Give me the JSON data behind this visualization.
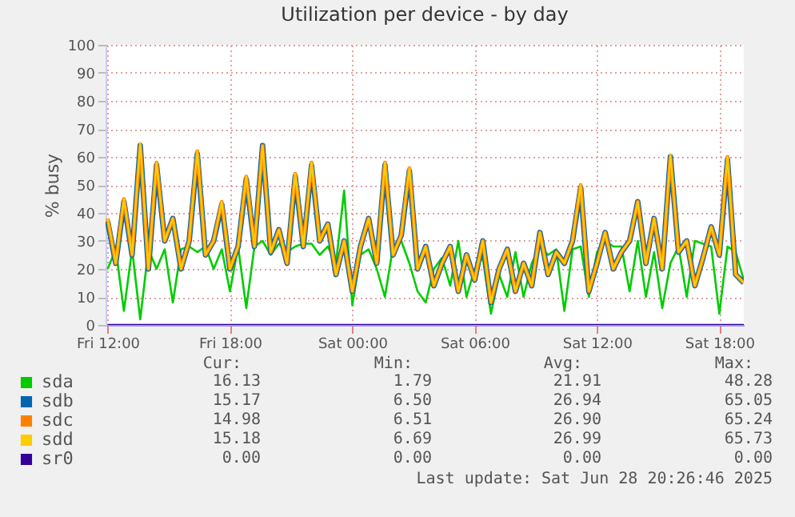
{
  "chart_data": {
    "type": "line",
    "title": "Utilization per device - by day",
    "ylabel": "% busy",
    "x": [
      "2025-06-27T12:00",
      "2025-06-27T12:24",
      "2025-06-27T12:48",
      "2025-06-27T13:12",
      "2025-06-27T13:36",
      "2025-06-27T14:00",
      "2025-06-27T14:24",
      "2025-06-27T14:48",
      "2025-06-27T15:12",
      "2025-06-27T15:36",
      "2025-06-27T16:00",
      "2025-06-27T16:24",
      "2025-06-27T16:48",
      "2025-06-27T17:12",
      "2025-06-27T17:36",
      "2025-06-27T18:00",
      "2025-06-27T18:24",
      "2025-06-27T18:48",
      "2025-06-27T19:12",
      "2025-06-27T19:36",
      "2025-06-27T20:00",
      "2025-06-27T20:24",
      "2025-06-27T20:48",
      "2025-06-27T21:12",
      "2025-06-27T21:36",
      "2025-06-27T22:00",
      "2025-06-27T22:24",
      "2025-06-27T22:48",
      "2025-06-27T23:12",
      "2025-06-27T23:36",
      "2025-06-28T00:00",
      "2025-06-28T00:24",
      "2025-06-28T00:48",
      "2025-06-28T01:12",
      "2025-06-28T01:36",
      "2025-06-28T02:00",
      "2025-06-28T02:24",
      "2025-06-28T02:48",
      "2025-06-28T03:12",
      "2025-06-28T03:36",
      "2025-06-28T04:00",
      "2025-06-28T04:24",
      "2025-06-28T04:48",
      "2025-06-28T05:12",
      "2025-06-28T05:36",
      "2025-06-28T06:00",
      "2025-06-28T06:24",
      "2025-06-28T06:48",
      "2025-06-28T07:12",
      "2025-06-28T07:36",
      "2025-06-28T08:00",
      "2025-06-28T08:24",
      "2025-06-28T08:48",
      "2025-06-28T09:12",
      "2025-06-28T09:36",
      "2025-06-28T10:00",
      "2025-06-28T10:24",
      "2025-06-28T10:48",
      "2025-06-28T11:12",
      "2025-06-28T11:36",
      "2025-06-28T12:00",
      "2025-06-28T12:24",
      "2025-06-28T12:48",
      "2025-06-28T13:12",
      "2025-06-28T13:36",
      "2025-06-28T14:00",
      "2025-06-28T14:24",
      "2025-06-28T14:48",
      "2025-06-28T15:12",
      "2025-06-28T15:36",
      "2025-06-28T16:00",
      "2025-06-28T16:24",
      "2025-06-28T16:48",
      "2025-06-28T17:12",
      "2025-06-28T17:36",
      "2025-06-28T18:00",
      "2025-06-28T18:24",
      "2025-06-28T18:48",
      "2025-06-28T19:12"
    ],
    "series": [
      {
        "name": "sda",
        "color": "#00cc00",
        "values": [
          20,
          27,
          5,
          27,
          2,
          27,
          20,
          27,
          8,
          27,
          28,
          26,
          28,
          20,
          27,
          12,
          28,
          6,
          28,
          30,
          25,
          29,
          26,
          28,
          29,
          29,
          25,
          28,
          22,
          48,
          7,
          25,
          27,
          20,
          10,
          28,
          30,
          22,
          12,
          8,
          20,
          24,
          14,
          30,
          10,
          20,
          24,
          4,
          18,
          10,
          26,
          10,
          22,
          28,
          25,
          27,
          5,
          27,
          28,
          10,
          26,
          30,
          28,
          28,
          12,
          30,
          10,
          26,
          6,
          22,
          28,
          10,
          30,
          29,
          28,
          4,
          28,
          26,
          16
        ]
      },
      {
        "name": "sdb",
        "color": "#0066b3",
        "values": [
          37,
          22,
          44,
          25,
          64,
          20,
          57,
          30,
          38,
          20,
          30,
          61,
          25,
          30,
          43,
          20,
          28,
          52,
          28,
          64,
          26,
          34,
          22,
          53,
          28,
          57,
          30,
          36,
          18,
          30,
          12,
          28,
          38,
          22,
          57,
          25,
          32,
          55,
          20,
          28,
          14,
          22,
          28,
          12,
          25,
          16,
          30,
          8,
          20,
          27,
          12,
          22,
          14,
          33,
          18,
          26,
          22,
          30,
          49,
          12,
          22,
          33,
          20,
          26,
          30,
          44,
          22,
          38,
          20,
          60,
          26,
          30,
          14,
          24,
          35,
          25,
          59,
          18,
          15
        ]
      },
      {
        "name": "sdc",
        "color": "#ff8000",
        "values": [
          38,
          22,
          45,
          25,
          64,
          20,
          58,
          30,
          38,
          20,
          30,
          62,
          25,
          30,
          44,
          20,
          28,
          53,
          28,
          64,
          26,
          34,
          22,
          54,
          28,
          58,
          30,
          36,
          18,
          30,
          12,
          28,
          38,
          22,
          58,
          25,
          32,
          56,
          20,
          28,
          14,
          22,
          28,
          12,
          25,
          16,
          30,
          8,
          20,
          27,
          12,
          22,
          14,
          33,
          18,
          26,
          22,
          30,
          50,
          12,
          22,
          33,
          20,
          26,
          30,
          44,
          22,
          38,
          20,
          60,
          26,
          30,
          14,
          24,
          35,
          25,
          60,
          18,
          15
        ]
      },
      {
        "name": "sdd",
        "color": "#ffcc00",
        "values": [
          38,
          22,
          45,
          25,
          65,
          20,
          58,
          30,
          38,
          20,
          30,
          62,
          25,
          30,
          44,
          20,
          28,
          53,
          28,
          64,
          26,
          34,
          22,
          54,
          28,
          58,
          30,
          36,
          18,
          30,
          12,
          28,
          38,
          22,
          58,
          25,
          32,
          56,
          20,
          28,
          14,
          22,
          28,
          12,
          25,
          16,
          30,
          8,
          20,
          27,
          12,
          22,
          14,
          33,
          18,
          26,
          22,
          30,
          50,
          12,
          22,
          33,
          20,
          26,
          30,
          44,
          22,
          38,
          20,
          61,
          26,
          30,
          14,
          24,
          35,
          25,
          60,
          18,
          15
        ]
      },
      {
        "name": "sr0",
        "color": "#330099",
        "values": [
          0,
          0,
          0,
          0,
          0,
          0,
          0,
          0,
          0,
          0,
          0,
          0,
          0,
          0,
          0,
          0,
          0,
          0,
          0,
          0,
          0,
          0,
          0,
          0,
          0,
          0,
          0,
          0,
          0,
          0,
          0,
          0,
          0,
          0,
          0,
          0,
          0,
          0,
          0,
          0,
          0,
          0,
          0,
          0,
          0,
          0,
          0,
          0,
          0,
          0,
          0,
          0,
          0,
          0,
          0,
          0,
          0,
          0,
          0,
          0,
          0,
          0,
          0,
          0,
          0,
          0,
          0,
          0,
          0,
          0,
          0,
          0,
          0,
          0,
          0,
          0,
          0,
          0,
          0
        ]
      }
    ],
    "xlim": [
      "2025-06-27T11:54",
      "2025-06-28T19:12"
    ],
    "xticks": [
      {
        "value": "2025-06-27T12:00",
        "label": "Fri 12:00"
      },
      {
        "value": "2025-06-27T18:00",
        "label": "Fri 18:00"
      },
      {
        "value": "2025-06-28T00:00",
        "label": "Sat 00:00"
      },
      {
        "value": "2025-06-28T06:00",
        "label": "Sat 06:00"
      },
      {
        "value": "2025-06-28T12:00",
        "label": "Sat 12:00"
      },
      {
        "value": "2025-06-28T18:00",
        "label": "Sat 18:00"
      }
    ],
    "ylim": [
      0,
      100
    ],
    "yticks": [
      0,
      10,
      20,
      30,
      40,
      50,
      60,
      70,
      80,
      90,
      100
    ],
    "grid": true,
    "legend": "bottom",
    "marker": "none",
    "line_style": "solid",
    "annotations": [
      "Cur:",
      "Min:",
      "Avg:",
      "Max:",
      "16.13",
      "1.79",
      "21.91",
      "48.28",
      "15.17",
      "6.50",
      "26.94",
      "65.05",
      "14.98",
      "6.51",
      "26.90",
      "65.24",
      "15.18",
      "6.69",
      "26.99",
      "65.73",
      "0.00",
      "0.00",
      "0.00",
      "0.00",
      "Last update: Sat Jun 28 20:26:46 2025"
    ]
  }
}
